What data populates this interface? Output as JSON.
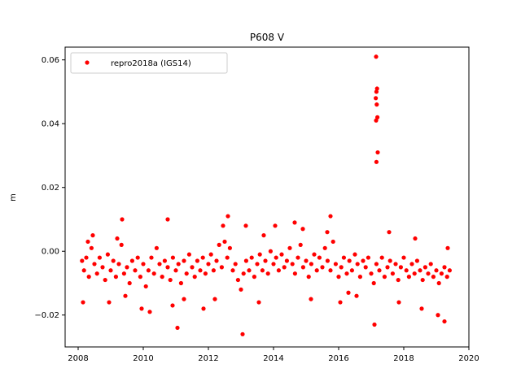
{
  "chart_data": {
    "type": "scatter",
    "title": "P608 V",
    "xlabel": "",
    "ylabel": "m",
    "xlim": [
      2007.6,
      2020.0
    ],
    "ylim": [
      -0.03,
      0.064
    ],
    "xticks": [
      2008,
      2010,
      2012,
      2014,
      2016,
      2018,
      2020
    ],
    "xtick_labels": [
      "2008",
      "2010",
      "2012",
      "2014",
      "2016",
      "2018",
      "2020"
    ],
    "yticks": [
      -0.02,
      0.0,
      0.02,
      0.04,
      0.06
    ],
    "ytick_labels": [
      "−0.02",
      "0.00",
      "0.02",
      "0.04",
      "0.06"
    ],
    "grid": false,
    "legend_position": "top-left",
    "series": [
      {
        "name": "repro2018a (IGS14)",
        "color": "#ff0000",
        "marker": "circle",
        "x": [
          2008.12,
          2008.18,
          2008.25,
          2008.33,
          2008.41,
          2008.5,
          2008.58,
          2008.66,
          2008.75,
          2008.83,
          2008.91,
          2009.0,
          2009.08,
          2009.16,
          2009.25,
          2009.33,
          2009.41,
          2009.5,
          2009.58,
          2009.66,
          2009.75,
          2009.83,
          2009.91,
          2010.0,
          2010.08,
          2010.16,
          2010.25,
          2010.33,
          2010.41,
          2010.5,
          2010.58,
          2010.66,
          2010.75,
          2010.83,
          2010.91,
          2011.0,
          2011.08,
          2011.16,
          2011.25,
          2011.33,
          2011.41,
          2011.5,
          2011.58,
          2011.66,
          2011.75,
          2011.83,
          2011.91,
          2012.0,
          2012.08,
          2012.16,
          2012.25,
          2012.33,
          2012.41,
          2012.5,
          2012.58,
          2012.66,
          2012.75,
          2012.83,
          2012.91,
          2013.0,
          2013.08,
          2013.16,
          2013.25,
          2013.33,
          2013.41,
          2013.5,
          2013.58,
          2013.66,
          2013.75,
          2013.83,
          2013.91,
          2014.0,
          2014.08,
          2014.16,
          2014.25,
          2014.33,
          2014.41,
          2014.5,
          2014.58,
          2014.66,
          2014.75,
          2014.83,
          2014.91,
          2015.0,
          2015.08,
          2015.16,
          2015.25,
          2015.33,
          2015.41,
          2015.5,
          2015.58,
          2015.66,
          2015.75,
          2015.83,
          2015.91,
          2016.0,
          2016.08,
          2016.16,
          2016.25,
          2016.33,
          2016.41,
          2016.5,
          2016.58,
          2016.66,
          2016.75,
          2016.83,
          2016.91,
          2017.0,
          2017.08,
          2017.16,
          2017.25,
          2017.33,
          2017.41,
          2017.5,
          2017.58,
          2017.66,
          2017.75,
          2017.83,
          2017.91,
          2018.0,
          2018.08,
          2018.16,
          2018.25,
          2018.33,
          2018.41,
          2018.5,
          2018.58,
          2018.66,
          2018.75,
          2018.83,
          2018.91,
          2019.0,
          2019.08,
          2019.16,
          2019.25,
          2019.33,
          2019.41,
          2008.15,
          2008.45,
          2008.95,
          2009.35,
          2009.45,
          2009.95,
          2010.2,
          2010.75,
          2011.05,
          2011.25,
          2011.85,
          2012.45,
          2012.6,
          2013.05,
          2013.15,
          2013.55,
          2014.05,
          2014.65,
          2015.15,
          2015.75,
          2016.05,
          2016.55,
          2017.1,
          2017.15,
          2017.18,
          2017.16,
          2017.14,
          2017.17,
          2017.19,
          2017.15,
          2017.2,
          2017.16,
          2017.85,
          2018.55,
          2019.05,
          2019.25,
          2008.3,
          2009.2,
          2010.9,
          2012.2,
          2013.7,
          2014.9,
          2015.65,
          2016.3,
          2017.55,
          2018.35,
          2019.35
        ],
        "y": [
          -0.003,
          -0.006,
          -0.002,
          -0.008,
          0.001,
          -0.004,
          -0.007,
          -0.002,
          -0.005,
          -0.009,
          -0.001,
          -0.006,
          -0.003,
          -0.008,
          -0.004,
          0.002,
          -0.007,
          -0.005,
          -0.01,
          -0.003,
          -0.006,
          -0.002,
          -0.008,
          -0.004,
          -0.011,
          -0.006,
          -0.002,
          -0.007,
          0.001,
          -0.004,
          -0.008,
          -0.003,
          -0.005,
          -0.009,
          -0.002,
          -0.006,
          -0.004,
          -0.01,
          -0.003,
          -0.007,
          -0.001,
          -0.005,
          -0.008,
          -0.003,
          -0.006,
          -0.002,
          -0.007,
          -0.004,
          -0.001,
          -0.006,
          -0.003,
          0.002,
          -0.005,
          0.003,
          -0.002,
          0.001,
          -0.006,
          -0.004,
          -0.009,
          -0.012,
          -0.007,
          -0.003,
          -0.006,
          -0.002,
          -0.008,
          -0.004,
          -0.001,
          -0.006,
          -0.003,
          -0.007,
          0.0,
          -0.004,
          -0.002,
          -0.006,
          -0.001,
          -0.005,
          -0.003,
          0.001,
          -0.004,
          -0.007,
          -0.002,
          0.002,
          -0.005,
          -0.003,
          -0.008,
          -0.004,
          -0.001,
          -0.006,
          -0.002,
          -0.005,
          0.001,
          -0.003,
          -0.006,
          0.003,
          -0.004,
          -0.008,
          -0.005,
          -0.002,
          -0.007,
          -0.003,
          -0.006,
          -0.001,
          -0.004,
          -0.008,
          -0.003,
          -0.005,
          -0.002,
          -0.007,
          -0.01,
          -0.004,
          -0.006,
          -0.002,
          -0.008,
          -0.005,
          -0.003,
          -0.007,
          -0.004,
          -0.009,
          -0.005,
          -0.002,
          -0.006,
          -0.008,
          -0.004,
          -0.007,
          -0.003,
          -0.006,
          -0.009,
          -0.005,
          -0.007,
          -0.004,
          -0.008,
          -0.006,
          -0.01,
          -0.007,
          -0.005,
          -0.008,
          -0.006,
          -0.016,
          0.005,
          -0.016,
          0.01,
          -0.014,
          -0.018,
          -0.019,
          0.01,
          -0.024,
          -0.015,
          -0.018,
          0.008,
          0.011,
          -0.026,
          0.008,
          -0.016,
          0.008,
          0.009,
          -0.015,
          0.011,
          -0.016,
          -0.014,
          -0.023,
          0.061,
          0.051,
          0.05,
          0.048,
          0.046,
          0.042,
          0.041,
          0.031,
          0.028,
          -0.016,
          -0.018,
          -0.02,
          -0.022,
          0.003,
          0.004,
          -0.017,
          -0.015,
          0.005,
          0.007,
          0.006,
          -0.013,
          0.006,
          0.004,
          0.001
        ]
      }
    ]
  }
}
